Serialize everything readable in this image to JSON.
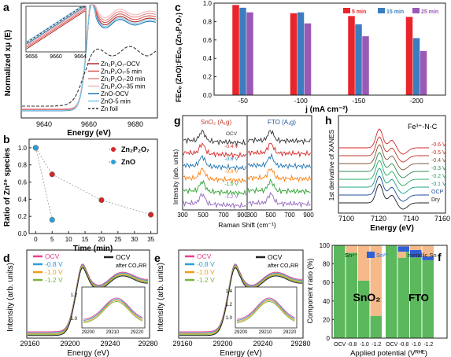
{
  "panels": {
    "a": {
      "letter": "a",
      "ylabel": "Normalized xμ (E)",
      "xlabel": "Energy (eV)",
      "xticks": [
        "9640",
        "9660",
        "9680"
      ],
      "inset_xticks": [
        "9656",
        "9660",
        "9664"
      ],
      "legend": [
        {
          "label": "Zn₂P₂O₇-OCV",
          "color": "#b22a2a",
          "dash": false
        },
        {
          "label": "Zn₂P₂O₇-5 min",
          "color": "#d9534f",
          "dash": false
        },
        {
          "label": "Zn₂P₂O₇-20 min",
          "color": "#e88a8a",
          "dash": false
        },
        {
          "label": "Zn₂P₂O₇-35 min",
          "color": "#f2b8b8",
          "dash": false
        },
        {
          "label": "ZnO-OCV",
          "color": "#1f77b4",
          "dash": false
        },
        {
          "label": "ZnO-5 min",
          "color": "#7fc6e8",
          "dash": false
        },
        {
          "label": "Zn foil",
          "color": "#333333",
          "dash": true
        }
      ]
    },
    "b": {
      "letter": "b",
      "ylabel": "Ratio of Zn²⁺ species",
      "xlabel": "Time (min)",
      "chart_data": {
        "type": "scatter",
        "xlim": [
          -2,
          37
        ],
        "ylim": [
          0.0,
          1.1
        ],
        "xticks": [
          "0",
          "5",
          "10",
          "15",
          "20",
          "25",
          "30",
          "35"
        ],
        "yticks": [
          "0.0",
          "0.2",
          "0.4",
          "0.6",
          "0.8",
          "1.0"
        ],
        "series": [
          {
            "name": "Zn₂P₂O₇",
            "color": "#d62728",
            "x": [
              0,
              5,
              20,
              35
            ],
            "y": [
              1.0,
              0.69,
              0.39,
              0.22
            ]
          },
          {
            "name": "ZnO",
            "color": "#2a9fd6",
            "x": [
              0,
              5
            ],
            "y": [
              1.0,
              0.16
            ]
          }
        ]
      }
    },
    "c": {
      "letter": "c",
      "ylabel": "FEᴄₒ (ZnO):FEᴄₒ (Zn₂P₂O₇)",
      "xlabel": "j (mA cm⁻²)",
      "chart_data": {
        "type": "bar",
        "categories": [
          "-50",
          "-100",
          "-150",
          "-200"
        ],
        "ylim": [
          0.0,
          1.0
        ],
        "yticks": [
          "0.0",
          "0.2",
          "0.4",
          "0.6",
          "0.8",
          "1.0"
        ],
        "series": [
          {
            "name": "5 min",
            "color": "#e8242c",
            "values": [
              0.98,
              0.89,
              0.86,
              0.85
            ]
          },
          {
            "name": "15 min",
            "color": "#3b7ec0",
            "values": [
              0.95,
              0.9,
              0.77,
              0.62
            ]
          },
          {
            "name": "25 min",
            "color": "#9b59b6",
            "values": [
              0.9,
              0.78,
              0.64,
              0.48
            ]
          }
        ]
      }
    },
    "g": {
      "letter": "g",
      "ylabel": "Intensity (arb. units)",
      "xlabel": "Raman Shift (cm⁻¹)",
      "left_title": "SnO₂ (A₁g)",
      "right_title": "FTO (A₁g)",
      "xticks_left": [
        "300",
        "500",
        "700",
        "900"
      ],
      "xticks_right": [
        "300",
        "500",
        "700",
        "900"
      ],
      "traces": [
        {
          "label": "OCV",
          "color": "#333333"
        },
        {
          "label": "-0.4 V",
          "color": "#d62728"
        },
        {
          "label": "-0.6 V",
          "color": "#1f77b4"
        },
        {
          "label": "-0.8 V",
          "color": "#ff7f0e"
        },
        {
          "label": "-1.0 V",
          "color": "#2ca02c"
        },
        {
          "label": "-1.2 V",
          "color": "#9467bd"
        }
      ]
    },
    "h": {
      "letter": "h",
      "ylabel": "1st derivative of XANES",
      "xlabel": "Energy (eV)",
      "title": "Fe³⁺-N-C",
      "xticks": [
        "7100",
        "7120",
        "7140",
        "7160"
      ],
      "traces": [
        {
          "label": "-0.6 V",
          "color": "#d62728"
        },
        {
          "label": "-0.5 V",
          "color": "#c0392b"
        },
        {
          "label": "-0.4 V",
          "color": "#7f5539"
        },
        {
          "label": "-0.3 V",
          "color": "#2e8b57"
        },
        {
          "label": "-0.2 V",
          "color": "#27ae60"
        },
        {
          "label": "-0.1 V",
          "color": "#16a085"
        },
        {
          "label": "OCP",
          "color": "#1f4e9c"
        },
        {
          "label": "Dry",
          "color": "#222222"
        }
      ]
    },
    "d": {
      "letter": "d",
      "ylabel": "Intensity (arb. units)",
      "xlabel": "Energy (eV)",
      "xticks": [
        "29160",
        "29200",
        "29240",
        "29280"
      ],
      "inset_xticks": [
        "29200",
        "29210",
        "29220"
      ],
      "inset_yticks": [
        "1.2",
        "1.0"
      ],
      "legend": [
        {
          "label": "OCV",
          "color": "#e83e8c"
        },
        {
          "label": "-0.8 V",
          "color": "#2a9fd6"
        },
        {
          "label": "-1.0 V",
          "color": "#f39c12"
        },
        {
          "label": "-1.2 V",
          "color": "#7cb342"
        }
      ],
      "legend2": {
        "label": "OCV",
        "sub": "after CO₂RR",
        "color": "#222222"
      }
    },
    "e": {
      "letter": "e",
      "ylabel": "Intensity (arb. units)",
      "xlabel": "Energy (eV)",
      "xticks": [
        "29160",
        "29200",
        "29240",
        "29280"
      ],
      "inset_xticks": [
        "29200",
        "29210",
        "29220"
      ],
      "inset_yticks": [
        "1.4",
        "1.2",
        "1.0"
      ],
      "legend": [
        {
          "label": "OCV",
          "color": "#e83e8c"
        },
        {
          "label": "-0.8 V",
          "color": "#2a9fd6"
        },
        {
          "label": "-1.0 V",
          "color": "#f39c12"
        },
        {
          "label": "-1.2 V",
          "color": "#7cb342"
        }
      ],
      "legend2": {
        "label": "OCV",
        "sub": "after CO₂RR",
        "color": "#222222"
      }
    },
    "f": {
      "letter": "f",
      "ylabel": "Component ratio (%)",
      "xlabel": "Applied potential (Vᴿᴴᴱ)",
      "group_labels": [
        "SnO₂",
        "FTO"
      ],
      "legend": [
        {
          "label": "Sn⁴⁺",
          "color": "#5cb85c"
        },
        {
          "label": "Sn²⁺",
          "color": "#2f5fd6"
        },
        {
          "label": "metallic Sn",
          "color": "#f5b98a"
        }
      ],
      "chart_data": {
        "type": "bar",
        "stacked": true,
        "ylim": [
          0,
          100
        ],
        "yticks": [
          "0",
          "20",
          "40",
          "60",
          "80",
          "100"
        ],
        "categories": [
          "OCV",
          "-0.8",
          "-1.0",
          "-1.2",
          "OCV",
          "-0.8",
          "-1.0",
          "-1.2"
        ],
        "series": [
          {
            "name": "Sn⁴⁺",
            "values": [
              100,
              92,
              62,
              24,
              100,
              93,
              87,
              84
            ]
          },
          {
            "name": "Sn²⁺",
            "values": [
              0,
              0,
              0,
              0,
              0,
              6,
              8,
              4
            ]
          },
          {
            "name": "metallic Sn",
            "values": [
              0,
              8,
              38,
              76,
              0,
              1,
              5,
              12
            ]
          }
        ]
      }
    }
  }
}
